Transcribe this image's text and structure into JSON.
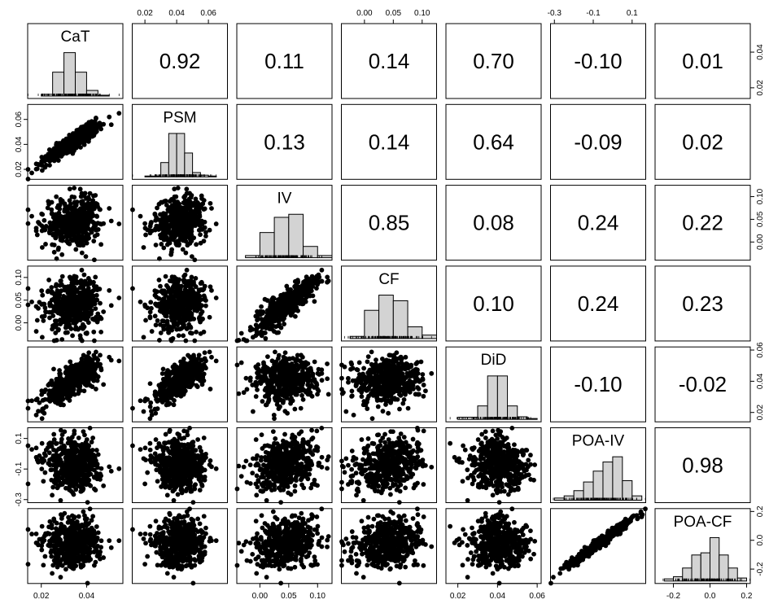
{
  "chart_data": {
    "type": "scatter",
    "layout": "pairs-matrix",
    "variables": [
      "CaT",
      "PSM",
      "IV",
      "CF",
      "DiD",
      "POA-IV",
      "POA-CF"
    ],
    "axis_ranges": [
      [
        0.014,
        0.056
      ],
      [
        0.012,
        0.072
      ],
      [
        -0.04,
        0.125
      ],
      [
        -0.04,
        0.125
      ],
      [
        0.014,
        0.062
      ],
      [
        -0.32,
        0.17
      ],
      [
        -0.3,
        0.22
      ]
    ],
    "ticks": [
      {
        "values": [
          0.02,
          0.04
        ],
        "labels": [
          "0.02",
          "0.04"
        ]
      },
      {
        "values": [
          0.02,
          0.04,
          0.06
        ],
        "labels": [
          "0.02",
          "0.04",
          "0.06"
        ]
      },
      {
        "values": [
          0.0,
          0.05,
          0.1
        ],
        "labels": [
          "0.00",
          "0.05",
          "0.10"
        ]
      },
      {
        "values": [
          0.0,
          0.05,
          0.1
        ],
        "labels": [
          "0.00",
          "0.05",
          "0.10"
        ]
      },
      {
        "values": [
          0.02,
          0.04,
          0.06
        ],
        "labels": [
          "0.02",
          "0.04",
          "0.06"
        ]
      },
      {
        "values": [
          -0.3,
          -0.1,
          0.1
        ],
        "labels": [
          "-0.3",
          "-0.1",
          "0.1"
        ]
      },
      {
        "values": [
          -0.2,
          0.0,
          0.2
        ],
        "labels": [
          "-0.2",
          "0.0",
          "0.2"
        ]
      }
    ],
    "correlations": [
      {
        "row": 0,
        "col": 1,
        "value": "0.92"
      },
      {
        "row": 0,
        "col": 2,
        "value": "0.11"
      },
      {
        "row": 0,
        "col": 3,
        "value": "0.14"
      },
      {
        "row": 0,
        "col": 4,
        "value": "0.70"
      },
      {
        "row": 0,
        "col": 5,
        "value": "-0.10"
      },
      {
        "row": 0,
        "col": 6,
        "value": "0.01"
      },
      {
        "row": 1,
        "col": 2,
        "value": "0.13"
      },
      {
        "row": 1,
        "col": 3,
        "value": "0.14"
      },
      {
        "row": 1,
        "col": 4,
        "value": "0.64"
      },
      {
        "row": 1,
        "col": 5,
        "value": "-0.09"
      },
      {
        "row": 1,
        "col": 6,
        "value": "0.02"
      },
      {
        "row": 2,
        "col": 3,
        "value": "0.85"
      },
      {
        "row": 2,
        "col": 4,
        "value": "0.08"
      },
      {
        "row": 2,
        "col": 5,
        "value": "0.24"
      },
      {
        "row": 2,
        "col": 6,
        "value": "0.22"
      },
      {
        "row": 3,
        "col": 4,
        "value": "0.10"
      },
      {
        "row": 3,
        "col": 5,
        "value": "0.24"
      },
      {
        "row": 3,
        "col": 6,
        "value": "0.23"
      },
      {
        "row": 4,
        "col": 5,
        "value": "-0.10"
      },
      {
        "row": 4,
        "col": 6,
        "value": "-0.02"
      },
      {
        "row": 5,
        "col": 6,
        "value": "0.98"
      }
    ],
    "histograms": [
      {
        "var": "CaT",
        "breaks": [
          0.02,
          0.025,
          0.03,
          0.035,
          0.04,
          0.045,
          0.05
        ],
        "rel_heights": [
          0.04,
          0.55,
          1.0,
          0.55,
          0.13,
          0.02
        ]
      },
      {
        "var": "PSM",
        "breaks": [
          0.02,
          0.03,
          0.035,
          0.04,
          0.045,
          0.05,
          0.055,
          0.06,
          0.065
        ],
        "rel_heights": [
          0.02,
          0.33,
          1.0,
          1.0,
          0.55,
          0.1,
          0.04,
          0.02
        ]
      },
      {
        "var": "IV",
        "breaks": [
          -0.025,
          0.0,
          0.025,
          0.05,
          0.075,
          0.1,
          0.125
        ],
        "rel_heights": [
          0.05,
          0.58,
          0.93,
          1.0,
          0.26,
          0.05
        ]
      },
      {
        "var": "CF",
        "breaks": [
          -0.025,
          0.0,
          0.025,
          0.05,
          0.075,
          0.1,
          0.125
        ],
        "rel_heights": [
          0.05,
          0.65,
          1.0,
          0.87,
          0.27,
          0.08
        ]
      },
      {
        "var": "DiD",
        "breaks": [
          0.02,
          0.03,
          0.035,
          0.04,
          0.045,
          0.05,
          0.055,
          0.06
        ],
        "rel_heights": [
          0.05,
          0.31,
          1.0,
          1.0,
          0.31,
          0.06,
          0.02
        ]
      },
      {
        "var": "POA-IV",
        "breaks": [
          -0.3,
          -0.25,
          -0.2,
          -0.15,
          -0.1,
          -0.05,
          0.0,
          0.05,
          0.1,
          0.15
        ],
        "rel_heights": [
          0.05,
          0.1,
          0.22,
          0.42,
          0.67,
          0.88,
          1.0,
          0.45,
          0.1
        ]
      },
      {
        "var": "POA-CF",
        "breaks": [
          -0.25,
          -0.2,
          -0.15,
          -0.1,
          -0.05,
          0.0,
          0.05,
          0.1,
          0.15,
          0.2
        ],
        "rel_heights": [
          0.05,
          0.1,
          0.3,
          0.6,
          0.65,
          1.0,
          0.6,
          0.3,
          0.07
        ]
      }
    ],
    "point_model": {
      "n": 500,
      "means": [
        0.034,
        0.042,
        0.045,
        0.04,
        0.04,
        -0.07,
        -0.02
      ],
      "sds": [
        0.0062,
        0.008,
        0.027,
        0.029,
        0.007,
        0.08,
        0.08
      ],
      "corr": [
        [
          1.0,
          0.92,
          0.11,
          0.14,
          0.7,
          -0.1,
          0.01
        ],
        [
          0.92,
          1.0,
          0.13,
          0.14,
          0.64,
          -0.09,
          0.02
        ],
        [
          0.11,
          0.13,
          1.0,
          0.85,
          0.08,
          0.24,
          0.22
        ],
        [
          0.14,
          0.14,
          0.85,
          1.0,
          0.1,
          0.24,
          0.23
        ],
        [
          0.7,
          0.64,
          0.08,
          0.1,
          1.0,
          -0.1,
          -0.02
        ],
        [
          -0.1,
          -0.09,
          0.24,
          0.24,
          -0.1,
          1.0,
          0.98
        ],
        [
          0.01,
          0.02,
          0.22,
          0.23,
          -0.02,
          0.98,
          1.0
        ]
      ]
    },
    "grid": false,
    "legend": "none"
  }
}
